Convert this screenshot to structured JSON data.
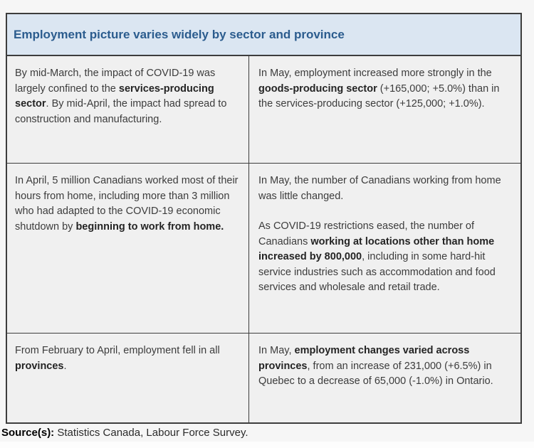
{
  "header": {
    "title": "Employment picture varies widely by sector and province"
  },
  "table": {
    "rows": [
      {
        "cells": [
          {
            "paragraphs": [
              [
                {
                  "t": "By mid-March, the impact of COVID-19 was largely confined to the "
                },
                {
                  "t": "services-producing sector",
                  "b": true
                },
                {
                  "t": ". By mid-April, the impact had spread to construction and manufacturing."
                }
              ]
            ]
          },
          {
            "paragraphs": [
              [
                {
                  "t": "In May, employment increased more strongly in the "
                },
                {
                  "t": "goods-producing sector",
                  "b": true
                },
                {
                  "t": " (+165,000; +5.0%) than in the services-producing sector (+125,000; +1.0%)."
                }
              ]
            ]
          }
        ]
      },
      {
        "cells": [
          {
            "paragraphs": [
              [
                {
                  "t": "In April, 5 million Canadians worked most of their hours from home, including more than 3 million who had adapted to the COVID-19 economic shutdown by "
                },
                {
                  "t": "beginning to work from home.",
                  "b": true
                }
              ]
            ]
          },
          {
            "paragraphs": [
              [
                {
                  "t": "In May, the number of Canadians working from home was little changed."
                }
              ],
              [
                {
                  "t": "As COVID-19 restrictions eased, the number of Canadians "
                },
                {
                  "t": "working at locations other than home increased by 800,000",
                  "b": true
                },
                {
                  "t": ", including in some hard-hit service industries such as accommodation and food services and wholesale and retail trade."
                }
              ]
            ]
          }
        ]
      },
      {
        "cells": [
          {
            "paragraphs": [
              [
                {
                  "t": "From February to April, employment fell in all "
                },
                {
                  "t": "provinces",
                  "b": true
                },
                {
                  "t": "."
                }
              ]
            ]
          },
          {
            "paragraphs": [
              [
                {
                  "t": "In May, "
                },
                {
                  "t": "employment changes varied across provinces",
                  "b": true
                },
                {
                  "t": ", from an increase of 231,000 (+6.5%) in Quebec to a decrease of 65,000 (-1.0%) in Ontario."
                }
              ]
            ]
          }
        ]
      }
    ]
  },
  "source": {
    "label": "Source(s):",
    "text": " Statistics Canada, Labour Force Survey."
  },
  "colors": {
    "page_bg": "#f6f6f6",
    "cell_bg": "#f0f0f0",
    "header_bg": "#dbe6f2",
    "header_text": "#2b5c8e",
    "border": "#3d3d3d",
    "body_text": "#3c3c3c"
  }
}
